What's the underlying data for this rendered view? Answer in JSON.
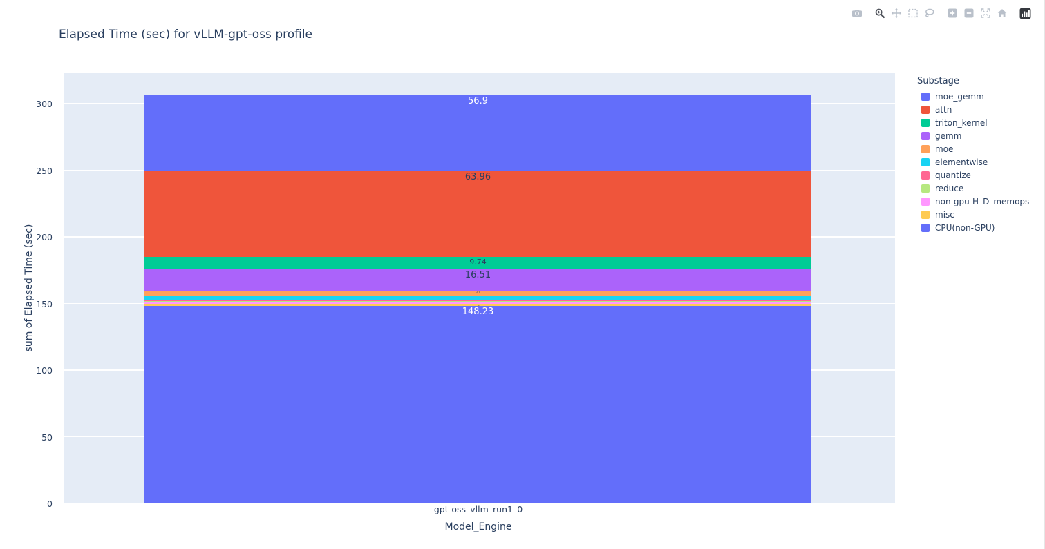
{
  "modebar": {
    "groups": [
      [
        "download-plot"
      ],
      [
        "zoom",
        "pan",
        "box-select",
        "lasso-select"
      ],
      [
        "zoom-in",
        "zoom-out",
        "autoscale",
        "reset-axes"
      ],
      [
        "plotly-logo"
      ]
    ],
    "active_button": "zoom",
    "icon_color": "#b9c0ca",
    "active_icon_color": "#50545c",
    "logo_color": "#35383e"
  },
  "chart_data": {
    "type": "bar",
    "stacked": true,
    "orientation": "vertical",
    "title": "Elapsed Time (sec) for vLLM-gpt-oss profile",
    "xlabel": "Model_Engine",
    "ylabel": "sum of Elapsed Time (sec)",
    "categories": [
      "gpt-oss_vllm_run1_0"
    ],
    "yticks": [
      0,
      50,
      100,
      150,
      200,
      250,
      300
    ],
    "ylim": [
      0,
      322.8
    ],
    "grid": true,
    "plot_bgcolor": "#E5ECF6",
    "gridcolor": "#ffffff",
    "legend_title": "Substage",
    "legend_position": "right",
    "stack_order": "last-series-at-bottom",
    "series": [
      {
        "name": "moe_gemm",
        "color": "#636EFA",
        "values": [
          56.9
        ],
        "label": "56.9",
        "label_style": "light"
      },
      {
        "name": "attn",
        "color": "#EF553B",
        "values": [
          63.96
        ],
        "label": "63.96",
        "label_style": "dark"
      },
      {
        "name": "triton_kernel",
        "color": "#00CC96",
        "values": [
          9.74
        ],
        "label": "9.74",
        "label_style": "dark-small"
      },
      {
        "name": "gemm",
        "color": "#AB63FA",
        "values": [
          16.51
        ],
        "label": "16.51",
        "label_style": "dark"
      },
      {
        "name": "moe",
        "color": "#FFA15A",
        "values": [
          3.1
        ],
        "label": "3.1",
        "label_style": "dark-tiny"
      },
      {
        "name": "elementwise",
        "color": "#19D3F3",
        "values": [
          3.0
        ],
        "label": "",
        "label_style": "none"
      },
      {
        "name": "quantize",
        "color": "#FF6692",
        "values": [
          1.2
        ],
        "label": "",
        "label_style": "none"
      },
      {
        "name": "reduce",
        "color": "#B6E880",
        "values": [
          0.7
        ],
        "label": "",
        "label_style": "none"
      },
      {
        "name": "non-gpu-H_D_memops",
        "color": "#FF97FF",
        "values": [
          1.2
        ],
        "label": "",
        "label_style": "none"
      },
      {
        "name": "misc",
        "color": "#FECB52",
        "values": [
          1.5
        ],
        "label": "1.5",
        "label_style": "dark-tiny-rotated"
      },
      {
        "name": "CPU(non-GPU)",
        "color": "#636EFA",
        "values": [
          148.23
        ],
        "label": "148.23",
        "label_style": "light"
      }
    ]
  }
}
